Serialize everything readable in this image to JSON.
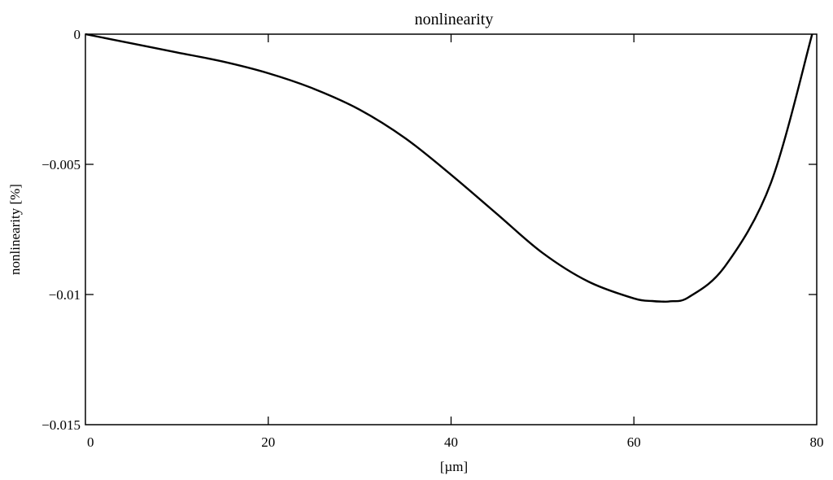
{
  "chart_data": {
    "type": "line",
    "title": "nonlinearity",
    "xlabel": "[µm]",
    "ylabel": "nonlinearity [%]",
    "xlim": [
      0,
      80
    ],
    "ylim": [
      -0.015,
      0
    ],
    "x_ticks": [
      {
        "value": 0,
        "label": "0"
      },
      {
        "value": 20,
        "label": "20"
      },
      {
        "value": 40,
        "label": "40"
      },
      {
        "value": 60,
        "label": "60"
      },
      {
        "value": 80,
        "label": "80"
      }
    ],
    "y_ticks": [
      {
        "value": 0,
        "label": "0"
      },
      {
        "value": -0.005,
        "label": "−0.005"
      },
      {
        "value": -0.01,
        "label": "−0.01"
      },
      {
        "value": -0.015,
        "label": "−0.015"
      }
    ],
    "grid": false,
    "series": [
      {
        "color": "#000000",
        "x": [
          0,
          5,
          10,
          15,
          20,
          25,
          30,
          35,
          40,
          45,
          50,
          55,
          60,
          62,
          63,
          64,
          66,
          70,
          75,
          79.5
        ],
        "y": [
          0,
          -0.00035,
          -0.0007,
          -0.00105,
          -0.0015,
          -0.0021,
          -0.0029,
          -0.004,
          -0.0054,
          -0.0069,
          -0.0084,
          -0.0095,
          -0.01015,
          -0.01025,
          -0.01027,
          -0.01026,
          -0.0101,
          -0.0089,
          -0.0057,
          0
        ]
      }
    ]
  }
}
